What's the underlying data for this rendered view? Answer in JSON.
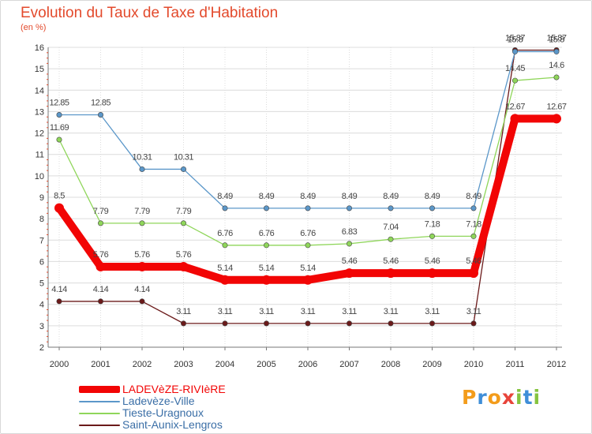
{
  "title": "Evolution du Taux de Taxe d'Habitation",
  "subtitle": "(en %)",
  "logo": {
    "letters": [
      "P",
      "r",
      "o",
      "x",
      "i",
      "t",
      "i"
    ],
    "colors": [
      "#f39c1b",
      "#3f8ed8",
      "#f39c1b",
      "#e8443a",
      "#86c440",
      "#3f8ed8",
      "#86c440"
    ]
  },
  "chart_data": {
    "type": "line",
    "x": [
      "2000",
      "2001",
      "2002",
      "2003",
      "2004",
      "2005",
      "2006",
      "2007",
      "2008",
      "2009",
      "2010",
      "2011",
      "2012"
    ],
    "ylim": [
      2,
      16
    ],
    "yticks": [
      "2",
      "3",
      "4",
      "5",
      "6",
      "7",
      "8",
      "9",
      "10",
      "11",
      "12",
      "13",
      "14",
      "15",
      "16"
    ],
    "grid": true,
    "legend": "bottom-left",
    "series": [
      {
        "name": "Saint-Aunix-Lengros",
        "color": "#6b1a1a",
        "values": [
          4.14,
          4.14,
          4.14,
          3.11,
          3.11,
          3.11,
          3.11,
          3.11,
          3.11,
          3.11,
          3.11,
          15.87,
          15.87
        ],
        "labels": [
          "4.14",
          "4.14",
          "4.14",
          "3.11",
          "3.11",
          "3.11",
          "3.11",
          "3.11",
          "3.11",
          "3.11",
          "3.11",
          "15.87",
          "15.87"
        ]
      },
      {
        "name": "Tieste-Uragnoux",
        "color": "#8fd65a",
        "values": [
          11.69,
          7.79,
          7.79,
          7.79,
          6.76,
          6.76,
          6.76,
          6.83,
          7.04,
          7.18,
          7.18,
          14.45,
          14.6
        ],
        "labels": [
          "11.69",
          "7.79",
          "7.79",
          "7.79",
          "6.76",
          "6.76",
          "6.76",
          "6.83",
          "7.04",
          "7.18",
          "7.18",
          "14.45",
          "14.6"
        ]
      },
      {
        "name": "Ladevèze-Ville",
        "color": "#5b97c9",
        "values": [
          12.85,
          12.85,
          10.31,
          10.31,
          8.49,
          8.49,
          8.49,
          8.49,
          8.49,
          8.49,
          8.49,
          15.8,
          15.8
        ],
        "labels": [
          "12.85",
          "12.85",
          "10.31",
          "10.31",
          "8.49",
          "8.49",
          "8.49",
          "8.49",
          "8.49",
          "8.49",
          "8.49",
          "15.8",
          "15.8"
        ]
      },
      {
        "name": "LADEVèZE-RIVIèRE",
        "color": "#f20505",
        "values": [
          8.5,
          5.76,
          5.76,
          5.76,
          5.14,
          5.14,
          5.14,
          5.46,
          5.46,
          5.46,
          5.46,
          12.67,
          12.67
        ],
        "labels": [
          "8.5",
          "5.76",
          "5.76",
          "5.76",
          "5.14",
          "5.14",
          "5.14",
          "5.46",
          "5.46",
          "5.46",
          "5.46",
          "12.67",
          "12.67"
        ]
      }
    ]
  },
  "legend_items": [
    {
      "name": "LADEVèZE-RIVIèRE",
      "color": "#f20505",
      "text_color": "#f20505",
      "thick": true
    },
    {
      "name": "Ladevèze-Ville",
      "color": "#5b97c9",
      "text_color": "#3a6ea6",
      "thick": false
    },
    {
      "name": "Tieste-Uragnoux",
      "color": "#8fd65a",
      "text_color": "#3a6ea6",
      "thick": false
    },
    {
      "name": "Saint-Aunix-Lengros",
      "color": "#6b1a1a",
      "text_color": "#3a6ea6",
      "thick": false
    }
  ]
}
